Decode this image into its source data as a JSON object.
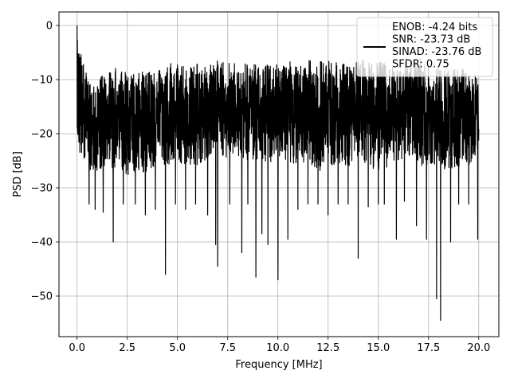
{
  "chart_data": {
    "type": "line",
    "title": "",
    "xlabel": "Frequency [MHz]",
    "ylabel": "PSD [dB]",
    "xlim": [
      -0.9,
      21.0
    ],
    "ylim": [
      -57.5,
      2.5
    ],
    "xticks": [
      0.0,
      2.5,
      5.0,
      7.5,
      10.0,
      12.5,
      15.0,
      17.5,
      20.0
    ],
    "xtick_labels": [
      "0.0",
      "2.5",
      "5.0",
      "7.5",
      "10.0",
      "12.5",
      "15.0",
      "17.5",
      "20.0"
    ],
    "yticks": [
      0,
      -10,
      -20,
      -30,
      -40,
      -50
    ],
    "ytick_labels": [
      "0",
      "−10",
      "−20",
      "−30",
      "−40",
      "−50"
    ],
    "grid": true,
    "legend": {
      "placement": "top-right",
      "entries": [
        "ENOB: -4.24 bits",
        "SNR: -23.73 dB",
        "SINAD: -23.76 dB",
        "SFDR: 0.75"
      ]
    },
    "series": [
      {
        "color": "#000000",
        "x_range": [
          0.0,
          20.0
        ],
        "peak": {
          "x": 0.0,
          "y": 0.0
        },
        "envelope_top": [
          [
            0.0,
            -2.5
          ],
          [
            0.5,
            -9
          ],
          [
            1.0,
            -9.5
          ],
          [
            1.5,
            -9
          ],
          [
            2.0,
            -7.5
          ],
          [
            2.5,
            -8.5
          ],
          [
            3.0,
            -9
          ],
          [
            3.5,
            -8
          ],
          [
            4.0,
            -8
          ],
          [
            4.5,
            -6
          ],
          [
            5.0,
            -7
          ],
          [
            5.5,
            -7.5
          ],
          [
            6.0,
            -6.5
          ],
          [
            6.5,
            -7.5
          ],
          [
            7.0,
            -6
          ],
          [
            7.5,
            -7
          ],
          [
            8.0,
            -7
          ],
          [
            8.5,
            -6.5
          ],
          [
            9.0,
            -7.5
          ],
          [
            9.5,
            -7
          ],
          [
            10.0,
            -6.5
          ],
          [
            10.5,
            -6.5
          ],
          [
            11.0,
            -6.5
          ],
          [
            11.5,
            -6.5
          ],
          [
            12.0,
            -6
          ],
          [
            12.5,
            -6.5
          ],
          [
            13.0,
            -6.5
          ],
          [
            13.5,
            -7.5
          ],
          [
            14.0,
            -6
          ],
          [
            14.5,
            -6.5
          ],
          [
            15.0,
            -6
          ],
          [
            15.5,
            -7.5
          ],
          [
            16.0,
            -7.5
          ],
          [
            16.5,
            -6
          ],
          [
            17.0,
            -6
          ],
          [
            17.5,
            -6.5
          ],
          [
            18.0,
            -7
          ],
          [
            18.5,
            -8
          ],
          [
            19.0,
            -7.5
          ],
          [
            19.5,
            -8.5
          ],
          [
            20.0,
            -9.5
          ]
        ],
        "envelope_bottom": [
          [
            0.0,
            -23.5
          ],
          [
            0.5,
            -26.5
          ],
          [
            1.0,
            -27
          ],
          [
            1.5,
            -27
          ],
          [
            2.0,
            -26
          ],
          [
            2.5,
            -28
          ],
          [
            3.0,
            -28
          ],
          [
            3.5,
            -27
          ],
          [
            4.0,
            -26
          ],
          [
            4.5,
            -26
          ],
          [
            5.0,
            -25
          ],
          [
            5.5,
            -27
          ],
          [
            6.0,
            -26
          ],
          [
            6.5,
            -25
          ],
          [
            7.0,
            -23
          ],
          [
            7.5,
            -25
          ],
          [
            8.0,
            -24
          ],
          [
            8.5,
            -25
          ],
          [
            9.0,
            -25
          ],
          [
            9.5,
            -26
          ],
          [
            10.0,
            -25
          ],
          [
            10.5,
            -25
          ],
          [
            11.0,
            -26
          ],
          [
            11.5,
            -25
          ],
          [
            12.0,
            -27
          ],
          [
            12.5,
            -26
          ],
          [
            13.0,
            -26
          ],
          [
            13.5,
            -26
          ],
          [
            14.0,
            -25
          ],
          [
            14.5,
            -26
          ],
          [
            15.0,
            -27
          ],
          [
            15.5,
            -26
          ],
          [
            16.0,
            -25
          ],
          [
            16.5,
            -24
          ],
          [
            17.0,
            -26
          ],
          [
            17.5,
            -26
          ],
          [
            18.0,
            -26
          ],
          [
            18.5,
            -27
          ],
          [
            19.0,
            -26
          ],
          [
            19.5,
            -26
          ],
          [
            20.0,
            -24
          ]
        ],
        "deep_dips": [
          [
            0.6,
            -33
          ],
          [
            0.9,
            -34
          ],
          [
            1.3,
            -34.5
          ],
          [
            1.8,
            -40
          ],
          [
            2.3,
            -33
          ],
          [
            2.9,
            -33
          ],
          [
            3.4,
            -35
          ],
          [
            3.9,
            -34
          ],
          [
            4.4,
            -46
          ],
          [
            4.9,
            -33
          ],
          [
            5.4,
            -34
          ],
          [
            5.9,
            -33
          ],
          [
            6.5,
            -35
          ],
          [
            6.9,
            -40.5
          ],
          [
            7.0,
            -44.5
          ],
          [
            7.6,
            -33
          ],
          [
            8.2,
            -42
          ],
          [
            8.5,
            -33
          ],
          [
            8.9,
            -46.5
          ],
          [
            9.2,
            -38.5
          ],
          [
            9.5,
            -40.5
          ],
          [
            10.0,
            -47
          ],
          [
            10.5,
            -39.5
          ],
          [
            11.0,
            -34
          ],
          [
            11.5,
            -33
          ],
          [
            12.0,
            -33
          ],
          [
            12.5,
            -35
          ],
          [
            13.0,
            -33
          ],
          [
            13.5,
            -33
          ],
          [
            14.0,
            -43
          ],
          [
            14.5,
            -33.5
          ],
          [
            15.0,
            -33
          ],
          [
            15.3,
            -33
          ],
          [
            15.9,
            -39.5
          ],
          [
            16.3,
            -32.5
          ],
          [
            16.9,
            -37
          ],
          [
            17.4,
            -39.5
          ],
          [
            17.9,
            -50.5
          ],
          [
            18.1,
            -54.5
          ],
          [
            18.6,
            -40
          ],
          [
            19.0,
            -33
          ],
          [
            19.5,
            -33
          ],
          [
            19.95,
            -39.5
          ]
        ]
      }
    ]
  }
}
